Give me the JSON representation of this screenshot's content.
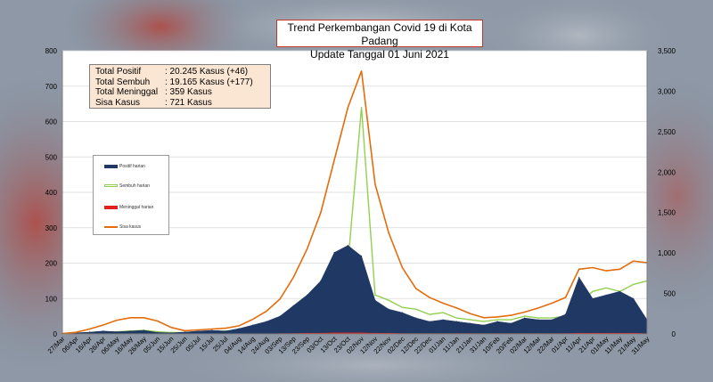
{
  "title_line1": "Trend Perkembangan Covid 19 di Kota Padang",
  "title_line2": "Update Tanggal 01 Juni 2021",
  "stats": [
    {
      "label": "Total Positif",
      "value": ": 20.245 Kasus  (+46)"
    },
    {
      "label": "Total Sembuh",
      "value": ": 19.165 Kasus (+177)"
    },
    {
      "label": "Total Meninggal",
      "value": ":      359 Kasus"
    },
    {
      "label": "Sisa Kasus",
      "value": ":      721 Kasus"
    }
  ],
  "legend": [
    {
      "label": "Positif harian",
      "color": "#1f3864"
    },
    {
      "label": "Sembuh harian",
      "color": "#92d050"
    },
    {
      "label": "Meninggal harian",
      "color": "#e0211b"
    },
    {
      "label": "Sisa kasus",
      "color": "#e46c0a"
    }
  ],
  "chart_data": {
    "type": "area",
    "title": "Trend Perkembangan Covid 19 di Kota Padang",
    "subtitle": "Update Tanggal 01 Juni 2021",
    "x_categories": [
      "27/Mar",
      "06/Apr",
      "16/Apr",
      "26/Apr",
      "06/May",
      "16/May",
      "26/May",
      "05/Jun",
      "15/Jun",
      "25/Jun",
      "05/Jul",
      "15/Jul",
      "25/Jul",
      "04/Aug",
      "14/Aug",
      "24/Aug",
      "03/Sep",
      "13/Sep",
      "23/Sep",
      "03/Oct",
      "13/Oct",
      "23/Oct",
      "02/Nov",
      "12/Nov",
      "22/Nov",
      "02/Dec",
      "12/Dec",
      "22/Dec",
      "01/Jan",
      "11/Jan",
      "21/Jan",
      "31/Jan",
      "10/Feb",
      "20/Feb",
      "02/Mar",
      "12/Mar",
      "22/Mar",
      "01/Apr",
      "11/Apr",
      "21/Apr",
      "01/May",
      "11/May",
      "21/May",
      "31/May"
    ],
    "y_left_lim": [
      0,
      800
    ],
    "y_left_ticks": [
      0,
      100,
      200,
      300,
      400,
      500,
      600,
      700,
      800
    ],
    "y_right_lim": [
      0,
      3500
    ],
    "y_right_ticks": [
      0,
      500,
      1000,
      1500,
      2000,
      2500,
      3000,
      3500
    ],
    "y_right_tick_labels": [
      "0",
      "500",
      "1,000",
      "1,500",
      "2,000",
      "2,500",
      "3,000",
      "3,500"
    ],
    "series": [
      {
        "name": "Positif harian",
        "axis": "left",
        "color": "#1f3864",
        "values": [
          1,
          3,
          5,
          8,
          6,
          8,
          10,
          4,
          3,
          5,
          8,
          10,
          8,
          15,
          25,
          35,
          50,
          80,
          110,
          150,
          230,
          250,
          220,
          95,
          70,
          60,
          45,
          35,
          40,
          35,
          30,
          25,
          35,
          30,
          45,
          40,
          40,
          55,
          160,
          100,
          110,
          120,
          100,
          40
        ]
      },
      {
        "name": "Sembuh harian",
        "axis": "left",
        "color": "#92d050",
        "values": [
          0,
          1,
          3,
          5,
          6,
          8,
          10,
          6,
          4,
          4,
          6,
          8,
          8,
          10,
          15,
          25,
          35,
          60,
          90,
          110,
          150,
          200,
          640,
          110,
          95,
          75,
          70,
          55,
          60,
          45,
          40,
          35,
          40,
          40,
          50,
          45,
          45,
          50,
          85,
          120,
          130,
          120,
          140,
          150
        ]
      },
      {
        "name": "Meninggal harian",
        "axis": "left",
        "color": "#e0211b",
        "values": [
          0,
          0,
          0,
          0,
          0,
          0,
          0,
          0,
          0,
          0,
          0,
          0,
          0,
          0,
          0,
          0,
          1,
          1,
          2,
          2,
          3,
          3,
          3,
          2,
          2,
          1,
          1,
          1,
          1,
          1,
          1,
          1,
          1,
          1,
          1,
          1,
          1,
          1,
          2,
          2,
          2,
          2,
          2,
          1
        ]
      },
      {
        "name": "Sisa kasus",
        "axis": "right",
        "color": "#e46c0a",
        "values": [
          5,
          20,
          60,
          110,
          170,
          200,
          200,
          160,
          80,
          40,
          50,
          60,
          70,
          100,
          180,
          280,
          430,
          700,
          1050,
          1500,
          2150,
          2800,
          3250,
          1850,
          1250,
          820,
          560,
          450,
          380,
          320,
          250,
          200,
          210,
          230,
          270,
          320,
          380,
          450,
          800,
          820,
          780,
          800,
          900,
          880
        ]
      }
    ]
  }
}
